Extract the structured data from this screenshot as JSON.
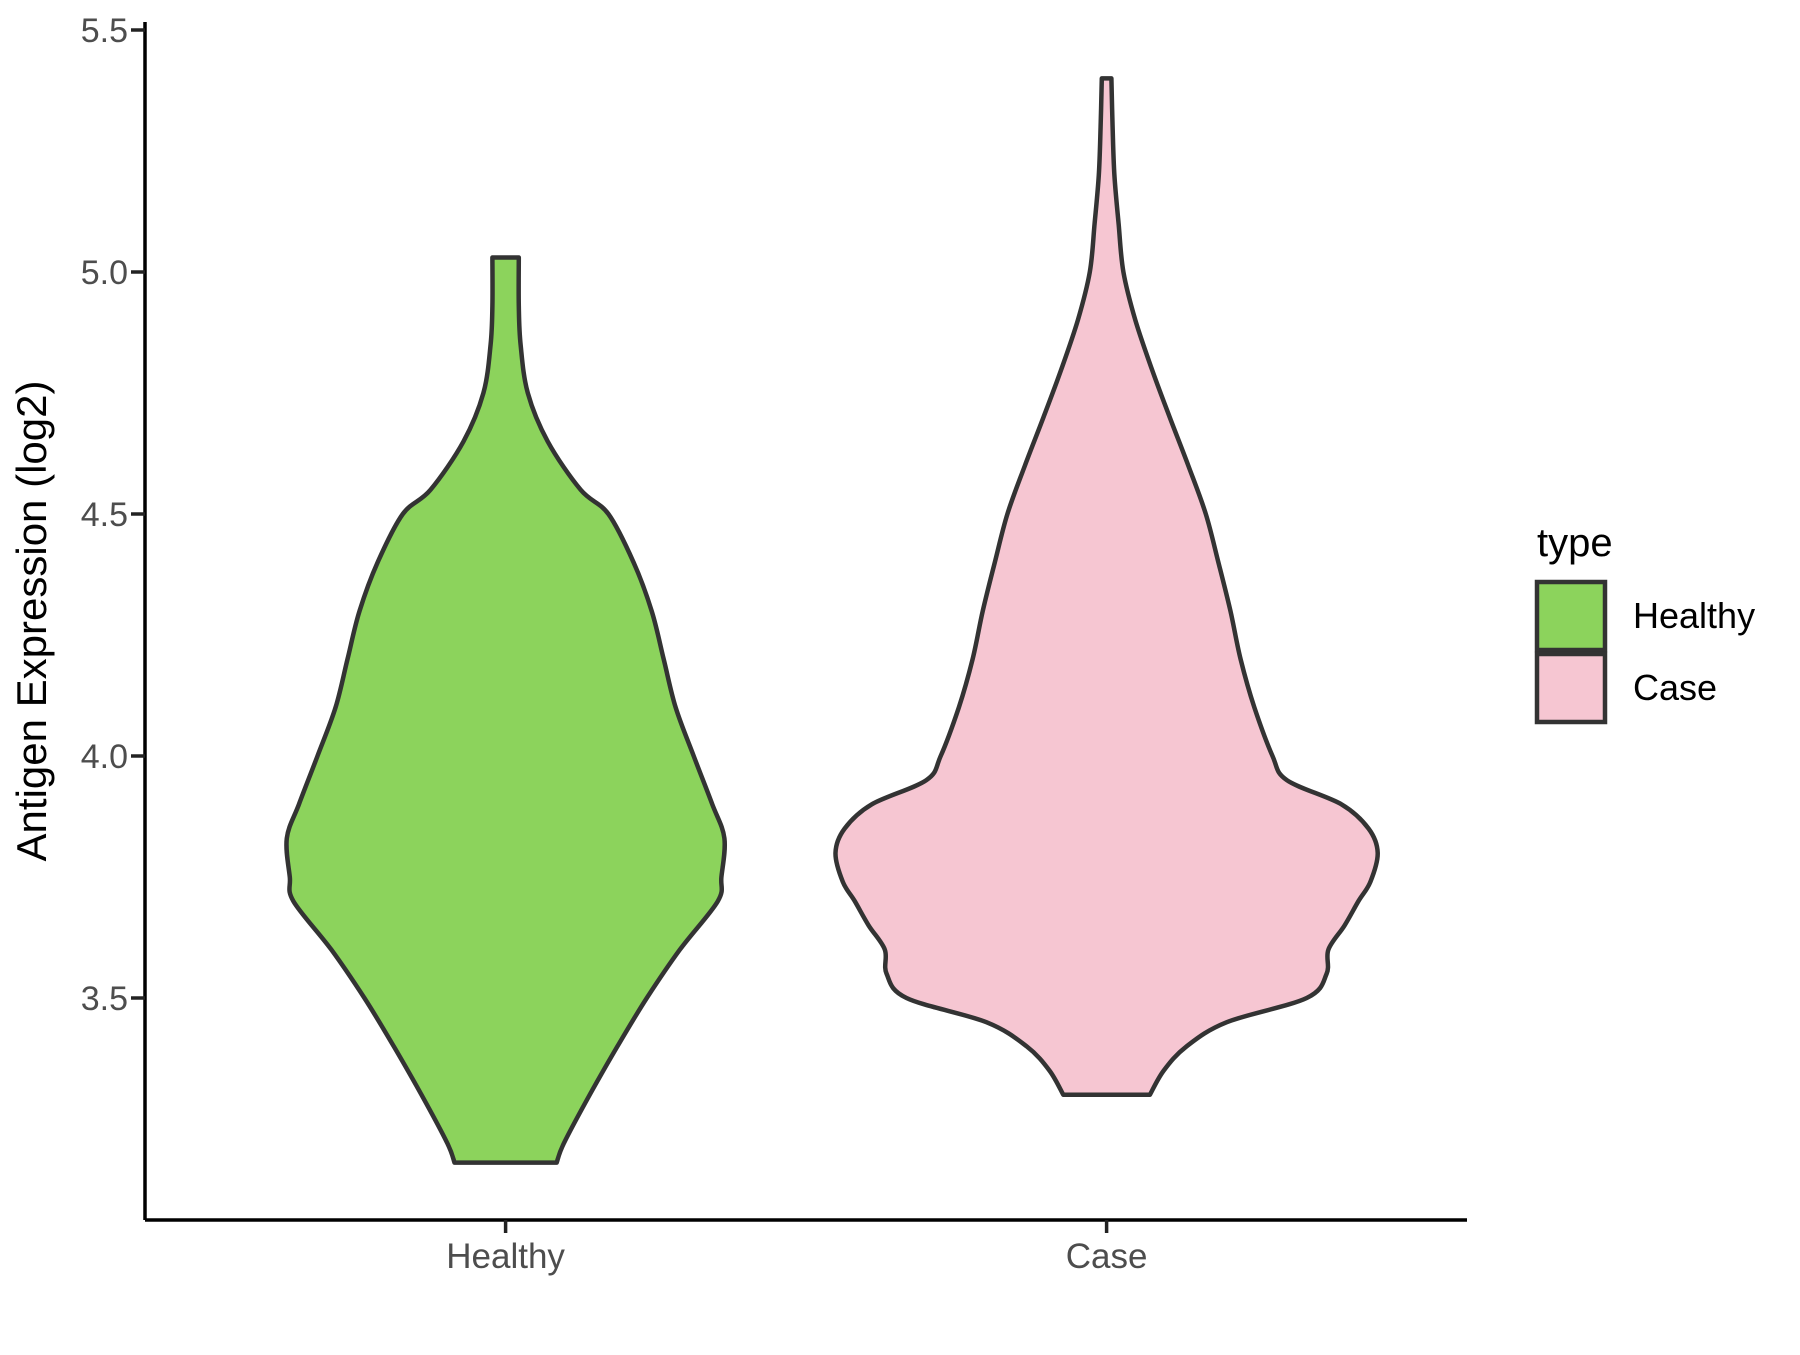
{
  "chart_data": {
    "type": "violin",
    "title": "",
    "xlabel": "",
    "ylabel": "Antigen Expression (log2)",
    "categories": [
      "Healthy",
      "Case"
    ],
    "y_ticks": [
      "3.5",
      "4.0",
      "4.5",
      "5.0",
      "5.5"
    ],
    "y_tick_values": [
      3.5,
      4.0,
      4.5,
      5.0,
      5.5
    ],
    "ylim": [
      3.04,
      5.5
    ],
    "grid": "off",
    "legend_position": "right",
    "outline_color": "#333333",
    "axis_color": "#000000",
    "tick_color": "#222222",
    "tick_label_color": "#4D4D4D",
    "series": [
      {
        "name": "Healthy",
        "fill": "#8CD35C",
        "category_index": 0,
        "value_range": [
          3.16,
          5.03
        ],
        "max_half_width_units": 0.364,
        "profile": [
          [
            5.03,
            0.022
          ],
          [
            4.93,
            0.022
          ],
          [
            4.85,
            0.025
          ],
          [
            4.75,
            0.037
          ],
          [
            4.65,
            0.07
          ],
          [
            4.55,
            0.125
          ],
          [
            4.5,
            0.171
          ],
          [
            4.4,
            0.213
          ],
          [
            4.3,
            0.243
          ],
          [
            4.2,
            0.263
          ],
          [
            4.1,
            0.283
          ],
          [
            4.0,
            0.313
          ],
          [
            3.9,
            0.344
          ],
          [
            3.83,
            0.364
          ],
          [
            3.75,
            0.359
          ],
          [
            3.7,
            0.353
          ],
          [
            3.6,
            0.29
          ],
          [
            3.5,
            0.235
          ],
          [
            3.4,
            0.186
          ],
          [
            3.3,
            0.14
          ],
          [
            3.2,
            0.097
          ],
          [
            3.16,
            0.085
          ]
        ]
      },
      {
        "name": "Case",
        "fill": "#F6C6D2",
        "category_index": 1,
        "value_range": [
          3.3,
          5.4
        ],
        "max_half_width_units": 0.451,
        "profile": [
          [
            5.4,
            0.008
          ],
          [
            5.3,
            0.01
          ],
          [
            5.2,
            0.013
          ],
          [
            5.1,
            0.02
          ],
          [
            5.0,
            0.028
          ],
          [
            4.9,
            0.048
          ],
          [
            4.8,
            0.075
          ],
          [
            4.7,
            0.105
          ],
          [
            4.6,
            0.136
          ],
          [
            4.5,
            0.165
          ],
          [
            4.4,
            0.186
          ],
          [
            4.3,
            0.206
          ],
          [
            4.2,
            0.223
          ],
          [
            4.1,
            0.246
          ],
          [
            4.0,
            0.276
          ],
          [
            3.95,
            0.3
          ],
          [
            3.9,
            0.391
          ],
          [
            3.85,
            0.436
          ],
          [
            3.8,
            0.451
          ],
          [
            3.74,
            0.439
          ],
          [
            3.7,
            0.419
          ],
          [
            3.65,
            0.396
          ],
          [
            3.6,
            0.369
          ],
          [
            3.55,
            0.366
          ],
          [
            3.5,
            0.333
          ],
          [
            3.45,
            0.2
          ],
          [
            3.4,
            0.133
          ],
          [
            3.35,
            0.095
          ],
          [
            3.3,
            0.072
          ]
        ]
      }
    ]
  },
  "legend": {
    "title": "type",
    "items": [
      {
        "label": "Healthy",
        "color": "#8CD35C"
      },
      {
        "label": "Case",
        "color": "#F6C6D2"
      }
    ]
  }
}
